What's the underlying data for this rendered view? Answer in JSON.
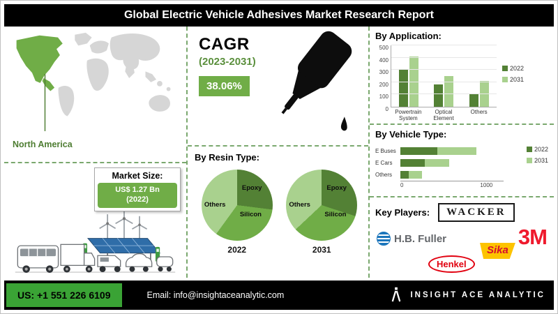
{
  "header": {
    "title": "Global Electric Vehicle Adhesives Market Research Report"
  },
  "map": {
    "region_label": "North America"
  },
  "market_size": {
    "label": "Market Size:",
    "value_line1": "US$ 1.27 Bn",
    "value_line2": "(2022)"
  },
  "cagr": {
    "label": "CAGR",
    "period": "(2023-2031)",
    "value": "38.06%"
  },
  "key_players": {
    "label": "Key Players:",
    "items": [
      "WACKER",
      "H.B. Fuller",
      "3M",
      "Henkel",
      "Sika"
    ]
  },
  "footer": {
    "phone": "US: +1 551 226 6109",
    "email": "Email: info@insightaceanalytic.com",
    "brand": "INSIGHT ACE ANALYTIC"
  },
  "colors": {
    "accent_green": "#70ad47",
    "dark_green": "#538135",
    "light_green": "#a9d18e",
    "footer_green": "#3aa335"
  },
  "chart_data": [
    {
      "type": "bar",
      "title": "By Application:",
      "categories": [
        "Powertrain System",
        "Optical Element",
        "Others"
      ],
      "series": [
        {
          "name": "2022",
          "color": "#538135",
          "values": [
            300,
            180,
            110
          ]
        },
        {
          "name": "2031",
          "color": "#a9d18e",
          "values": [
            410,
            250,
            210
          ]
        }
      ],
      "ylim": [
        0,
        500
      ],
      "yticks": [
        0,
        100,
        200,
        300,
        400,
        500
      ],
      "legend_position": "right",
      "grid": true
    },
    {
      "type": "pie",
      "title": "By Resin Type:",
      "pies": [
        {
          "label": "2022",
          "segments": [
            {
              "name": "Epoxy",
              "value": 27,
              "color": "#538135"
            },
            {
              "name": "Silicon",
              "value": 33,
              "color": "#70ad47"
            },
            {
              "name": "Others",
              "value": 40,
              "color": "#a9d18e"
            }
          ]
        },
        {
          "label": "2031",
          "segments": [
            {
              "name": "Epoxy",
              "value": 30,
              "color": "#538135"
            },
            {
              "name": "Silicon",
              "value": 33,
              "color": "#70ad47"
            },
            {
              "name": "Others",
              "value": 37,
              "color": "#a9d18e"
            }
          ]
        }
      ]
    },
    {
      "type": "bar",
      "orientation": "horizontal",
      "overlay": true,
      "title": "By Vehicle Type:",
      "categories": [
        "E Buses",
        "E Cars",
        "Others"
      ],
      "series": [
        {
          "name": "2022",
          "color": "#538135",
          "values": [
            430,
            280,
            100
          ]
        },
        {
          "name": "2031",
          "color": "#a9d18e",
          "values": [
            880,
            570,
            250
          ]
        }
      ],
      "xlim": [
        0,
        1200
      ],
      "xticks": [
        0,
        1000
      ],
      "legend_position": "right"
    }
  ]
}
